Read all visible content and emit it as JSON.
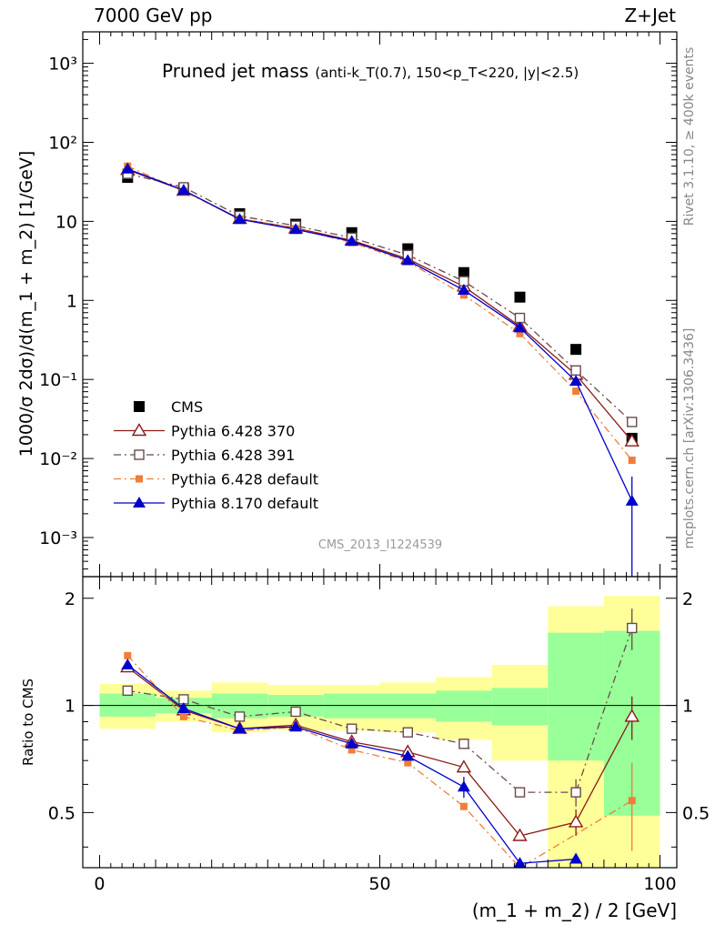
{
  "header": {
    "left": "7000 GeV pp",
    "right": "Z+Jet"
  },
  "side": {
    "rivet": "Rivet 3.1.10, ≥ 400k events",
    "mcplots": "mcplots.cern.ch [arXiv:1306.3436]"
  },
  "watermark": "CMS_2013_I1224539",
  "chart_data": [
    {
      "type": "scatter",
      "title": "Pruned jet mass",
      "subtitle": "(anti-k_T(0.7), 150<p_T<220, |y|<2.5)",
      "xlabel": "(m_1 + m_2) / 2 [GeV]",
      "ylabel": "1000/σ 2dσ)/d(m_1 + m_2) [1/GeV]",
      "xlim": [
        -3,
        103
      ],
      "ylim": [
        0.00032,
        2500
      ],
      "yscale": "log",
      "x": [
        5,
        15,
        25,
        35,
        45,
        55,
        65,
        75,
        85,
        95
      ],
      "yticks": [
        0.001,
        0.01,
        0.1,
        1,
        10,
        100,
        1000
      ],
      "ytick_labels": [
        "10^-3",
        "10^-2",
        "10^-1",
        "1",
        "10",
        "10^2",
        "10^3"
      ],
      "legend_position": "bottom-left",
      "series": [
        {
          "name": "CMS",
          "color": "#000000",
          "marker": "square",
          "line": "none",
          "values": [
            36,
            26,
            12.5,
            9.2,
            7.2,
            4.5,
            2.25,
            1.1,
            0.24,
            0.018
          ]
        },
        {
          "name": "Pythia 6.428 370",
          "color": "#8b1a1a",
          "marker": "open-triangle",
          "line": "solid",
          "values": [
            45,
            24.5,
            10.8,
            8.2,
            5.75,
            3.35,
            1.5,
            0.47,
            0.115,
            0.0165
          ]
        },
        {
          "name": "Pythia 6.428 391",
          "color": "#6b4a4a",
          "marker": "open-square",
          "line": "dashdot",
          "values": [
            40,
            27,
            11.7,
            8.8,
            6.2,
            3.75,
            1.75,
            0.6,
            0.13,
            0.029
          ]
        },
        {
          "name": "Pythia 6.428 default",
          "color": "#f07d3a",
          "marker": "filled-square-small",
          "line": "dashdot",
          "values": [
            50,
            24,
            10.7,
            8.1,
            5.4,
            3.1,
            1.17,
            0.38,
            0.071,
            0.0095
          ]
        },
        {
          "name": "Pythia 8.170 default",
          "color": "#0000cc",
          "marker": "filled-triangle",
          "line": "solid",
          "values": [
            46,
            24.8,
            10.6,
            7.9,
            5.6,
            3.2,
            1.35,
            0.45,
            0.095,
            0.0029
          ],
          "errors": [
            0,
            0,
            0,
            0,
            0,
            0,
            0,
            0,
            0,
            0.003
          ]
        }
      ]
    },
    {
      "type": "scatter",
      "ylabel": "Ratio to CMS",
      "xlabel": "(m_1 + m_2) / 2 [GeV]",
      "xlim": [
        -3,
        103
      ],
      "ylim": [
        0.35,
        2.3
      ],
      "yscale": "log",
      "xticks": [
        0,
        50,
        100
      ],
      "yticks": [
        0.5,
        1,
        2
      ],
      "bins": [
        [
          0,
          10
        ],
        [
          10,
          20
        ],
        [
          20,
          30
        ],
        [
          30,
          40
        ],
        [
          40,
          50
        ],
        [
          50,
          60
        ],
        [
          60,
          70
        ],
        [
          70,
          80
        ],
        [
          80,
          90
        ],
        [
          90,
          100
        ]
      ],
      "band_green": [
        [
          0.93,
          1.08
        ],
        [
          0.95,
          1.05
        ],
        [
          0.92,
          1.08
        ],
        [
          0.93,
          1.07
        ],
        [
          0.92,
          1.08
        ],
        [
          0.92,
          1.08
        ],
        [
          0.9,
          1.1
        ],
        [
          0.88,
          1.12
        ],
        [
          0.7,
          1.6
        ],
        [
          0.49,
          1.62
        ]
      ],
      "band_yellow": [
        [
          0.86,
          1.15
        ],
        [
          0.9,
          1.1
        ],
        [
          0.84,
          1.16
        ],
        [
          0.85,
          1.14
        ],
        [
          0.85,
          1.14
        ],
        [
          0.84,
          1.16
        ],
        [
          0.8,
          1.2
        ],
        [
          0.7,
          1.3
        ],
        [
          0.35,
          1.9
        ],
        [
          0.35,
          2.03
        ]
      ],
      "series": [
        {
          "name": "Pythia 6.428 370",
          "color": "#8b1a1a",
          "marker": "open-triangle",
          "line": "solid",
          "x": [
            5,
            15,
            25,
            35,
            45,
            55,
            65,
            75,
            85,
            95
          ],
          "values": [
            1.28,
            0.97,
            0.86,
            0.88,
            0.79,
            0.74,
            0.67,
            0.43,
            0.47,
            0.93
          ],
          "errors": [
            0,
            0,
            0,
            0,
            0,
            0,
            0,
            0.01,
            0.04,
            0.13
          ]
        },
        {
          "name": "Pythia 6.428 391",
          "color": "#6b4a4a",
          "marker": "open-square",
          "line": "dashdot",
          "x": [
            5,
            15,
            25,
            35,
            45,
            55,
            65,
            75,
            85,
            95
          ],
          "values": [
            1.1,
            1.04,
            0.93,
            0.96,
            0.86,
            0.84,
            0.78,
            0.57,
            0.57,
            1.65
          ],
          "errors": [
            0,
            0,
            0,
            0,
            0,
            0,
            0,
            0,
            0.05,
            0.22
          ]
        },
        {
          "name": "Pythia 6.428 default",
          "color": "#f07d3a",
          "marker": "filled-square-small",
          "line": "dashdot",
          "x": [
            5,
            15,
            25,
            35,
            45,
            55,
            65,
            75,
            95
          ],
          "values": [
            1.38,
            0.93,
            0.85,
            0.87,
            0.75,
            0.69,
            0.52,
            0.35,
            0.54
          ],
          "errors": [
            0,
            0,
            0,
            0,
            0,
            0,
            0,
            0,
            0.15
          ]
        },
        {
          "name": "Pythia 8.170 default",
          "color": "#0000cc",
          "marker": "filled-triangle",
          "line": "solid",
          "x": [
            5,
            15,
            25,
            35,
            45,
            55,
            65,
            75,
            85
          ],
          "values": [
            1.3,
            0.98,
            0.86,
            0.87,
            0.78,
            0.72,
            0.59,
            0.36,
            0.37
          ],
          "errors": [
            0,
            0,
            0,
            0,
            0,
            0,
            0.04,
            0,
            0
          ]
        }
      ]
    }
  ]
}
